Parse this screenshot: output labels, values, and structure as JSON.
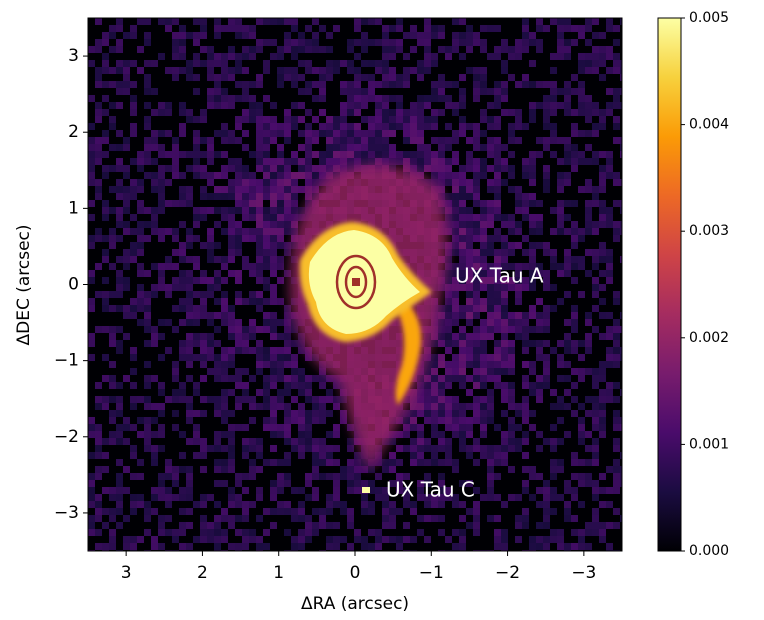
{
  "chart_data": {
    "type": "image",
    "x_label": "ΔRA (arcsec)",
    "y_label": "ΔDEC (arcsec)",
    "xlim": [
      3.5,
      -3.5
    ],
    "ylim": [
      -3.5,
      3.5
    ],
    "xticks": [
      3,
      2,
      1,
      0,
      {
        "value": -1,
        "label": "−1"
      },
      {
        "value": -2,
        "label": "−2"
      },
      {
        "value": -3,
        "label": "−3"
      }
    ],
    "yticks": [
      {
        "value": -3,
        "label": "−3"
      },
      {
        "value": -2,
        "label": "−2"
      },
      {
        "value": -1,
        "label": "−1"
      },
      0,
      1,
      2,
      3
    ],
    "colormap": "inferno",
    "colorbar_lim": [
      0,
      0.005
    ],
    "colorbar_ticks": [
      {
        "value": 0,
        "label": "0.000"
      },
      0.001,
      0.002,
      0.003,
      0.004,
      0.005
    ],
    "annotations": [
      "UX Tau A",
      "UX Tau C"
    ]
  }
}
